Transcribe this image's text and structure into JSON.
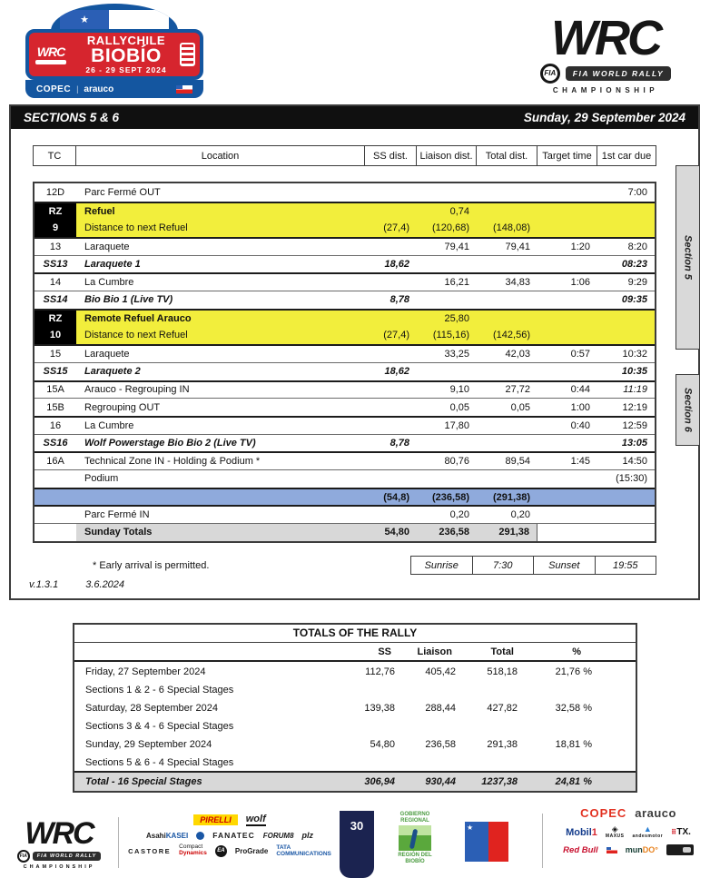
{
  "plate": {
    "wrc": "WRC",
    "title_line1": "RALLYCHILE",
    "title_line2": "BIOBÍO",
    "dates": "26 - 29 SEPT 2024",
    "copec": "COPEC",
    "arauco": "arauco"
  },
  "wrc_logo": {
    "word": "WRC",
    "fia": "FIA",
    "bar": "FIA WORLD RALLY",
    "champ": "CHAMPIONSHIP"
  },
  "band": {
    "left": "SECTIONS 5 & 6",
    "right": "Sunday, 29 September 2024"
  },
  "itinerary": {
    "columns": [
      "TC",
      "Location",
      "SS dist.",
      "Liaison dist.",
      "Total dist.",
      "Target time",
      "1st car due"
    ],
    "section_tabs": [
      "Section 5",
      "Section 6"
    ],
    "rows": [
      {
        "type": "normal",
        "tc": "12D",
        "location": "Parc Fermé OUT",
        "due": "7:00"
      },
      {
        "type": "refuel",
        "tc": "RZ",
        "location": "Refuel",
        "liaison": "0,74",
        "sep": true,
        "loc_bold": true
      },
      {
        "type": "refuel",
        "tc": "9",
        "location": "Distance to next Refuel",
        "ss": "(27,4)",
        "liaison": "(120,68)",
        "total": "(148,08)",
        "noline": true
      },
      {
        "type": "normal",
        "tc": "13",
        "location": "Laraquete",
        "liaison": "79,41",
        "total": "79,41",
        "target": "1:20",
        "due": "8:20",
        "sep": true
      },
      {
        "type": "stage",
        "tc": "SS13",
        "location": "Laraquete 1",
        "ss": "18,62",
        "due": "08:23"
      },
      {
        "type": "normal",
        "tc": "14",
        "location": "La Cumbre",
        "liaison": "16,21",
        "total": "34,83",
        "target": "1:06",
        "due": "9:29",
        "sep": true
      },
      {
        "type": "stage",
        "tc": "SS14",
        "location": "Bio Bio 1 (Live TV)",
        "ss": "8,78",
        "due": "09:35"
      },
      {
        "type": "refuel",
        "tc": "RZ",
        "location": "Remote Refuel Arauco",
        "liaison": "25,80",
        "sep": true,
        "loc_bold": true
      },
      {
        "type": "refuel",
        "tc": "10",
        "location": "Distance to next Refuel",
        "ss": "(27,4)",
        "liaison": "(115,16)",
        "total": "(142,56)",
        "noline": true
      },
      {
        "type": "normal",
        "tc": "15",
        "location": "Laraquete",
        "liaison": "33,25",
        "total": "42,03",
        "target": "0:57",
        "due": "10:32",
        "sep": true
      },
      {
        "type": "stage",
        "tc": "SS15",
        "location": "Laraquete 2",
        "ss": "18,62",
        "due": "10:35"
      },
      {
        "type": "normal",
        "tc": "15A",
        "location": "Arauco - Regrouping IN",
        "liaison": "9,10",
        "total": "27,72",
        "target": "0:44",
        "due": "11:19",
        "sep": true,
        "due_italic": true
      },
      {
        "type": "normal",
        "tc": "15B",
        "location": "Regrouping OUT",
        "liaison": "0,05",
        "total": "0,05",
        "target": "1:00",
        "due": "12:19"
      },
      {
        "type": "normal",
        "tc": "16",
        "location": "La Cumbre",
        "liaison": "17,80",
        "target": "0:40",
        "due": "12:59",
        "sep": true
      },
      {
        "type": "stage",
        "tc": "SS16",
        "location": "Wolf Powerstage Bio Bio 2 (Live TV)",
        "ss": "8,78",
        "due": "13:05"
      },
      {
        "type": "normal",
        "tc": "16A",
        "location": "Technical Zone IN - Holding & Podium *",
        "liaison": "80,76",
        "total": "89,54",
        "target": "1:45",
        "due": "14:50",
        "sep": true
      },
      {
        "type": "normal",
        "tc": "",
        "location": "Podium",
        "due": "(15:30)"
      },
      {
        "type": "blue",
        "tc": "",
        "location": "",
        "ss": "(54,8)",
        "liaison": "(236,58)",
        "total": "(291,38)",
        "sep": true
      },
      {
        "type": "normal",
        "tc": "",
        "location": "Parc Fermé IN",
        "liaison": "0,20",
        "total": "0,20",
        "sep": true
      },
      {
        "type": "totals",
        "tc": "",
        "location": "Sunday Totals",
        "ss": "54,80",
        "liaison": "236,58",
        "total": "291,38"
      }
    ],
    "footnote": "* Early arrival is permitted.",
    "sun": {
      "sunrise_label": "Sunrise",
      "sunrise": "7:30",
      "sunset_label": "Sunset",
      "sunset": "19:55"
    },
    "version": "v.1.3.1",
    "version_date": "3.6.2024"
  },
  "totals": {
    "title": "TOTALS OF THE RALLY",
    "columns": [
      "SS",
      "Liaison",
      "Total",
      "%"
    ],
    "rows": [
      {
        "label": "Friday, 27 September 2024",
        "sub": "Sections 1 & 2 - 6 Special Stages",
        "ss": "112,76",
        "liaison": "405,42",
        "total": "518,18",
        "pct": "21,76 %"
      },
      {
        "label": "Saturday, 28 September 2024",
        "sub": "Sections 3 & 4 - 6 Special Stages",
        "ss": "139,38",
        "liaison": "288,44",
        "total": "427,82",
        "pct": "32,58 %"
      },
      {
        "label": "Sunday, 29 September 2024",
        "sub": "Sections 5 & 6 - 4 Special Stages",
        "ss": "54,80",
        "liaison": "236,58",
        "total": "291,38",
        "pct": "18,81 %"
      }
    ],
    "total_row": {
      "label": "Total - 16 Special Stages",
      "ss": "306,94",
      "liaison": "930,44",
      "total": "1237,38",
      "pct": "24,81 %"
    }
  },
  "footer": {
    "page_number": "30",
    "wrc": {
      "word": "WRC",
      "fia": "FIA",
      "bar": "FIA WORLD RALLY",
      "champ": "CHAMPIONSHIP"
    },
    "mid": {
      "pirelli": "PIRELLI",
      "wolf": "wolf",
      "asahi_black": "Asahi",
      "asahi_blue": "KASEI",
      "fanatec": "FANATEC",
      "forum8": "FORUM8",
      "plz": "plz",
      "castore": "CASTORE",
      "compact1": "Compact",
      "compact2": "Dynamics",
      "ea": "EA",
      "prograde": "ProGrade",
      "tata1": "TATA",
      "tata2": "COMMUNICATIONS"
    },
    "gob": {
      "top": "GOBIERNO REGIONAL",
      "bottom": "REGIÓN DEL BIOBÍO"
    },
    "chilegov": {
      "star": "★"
    },
    "right": {
      "copec": "COPEC",
      "arauco": "arauco",
      "mobil": "Mobil",
      "mobil_one": "1",
      "maxus": "MAXUS",
      "andesmotor": "andesmotor",
      "tx": "TX.",
      "redbull": "Red Bull",
      "mundo1": "mun",
      "mundo2": "DO°"
    }
  },
  "colors": {
    "yellow": "#f2ee3c",
    "blue_row": "#8faadc",
    "gray": "#d8d8d8",
    "plate_red": "#d6252e",
    "plate_blue": "#1456a0",
    "navy_badge": "#1b2350"
  }
}
